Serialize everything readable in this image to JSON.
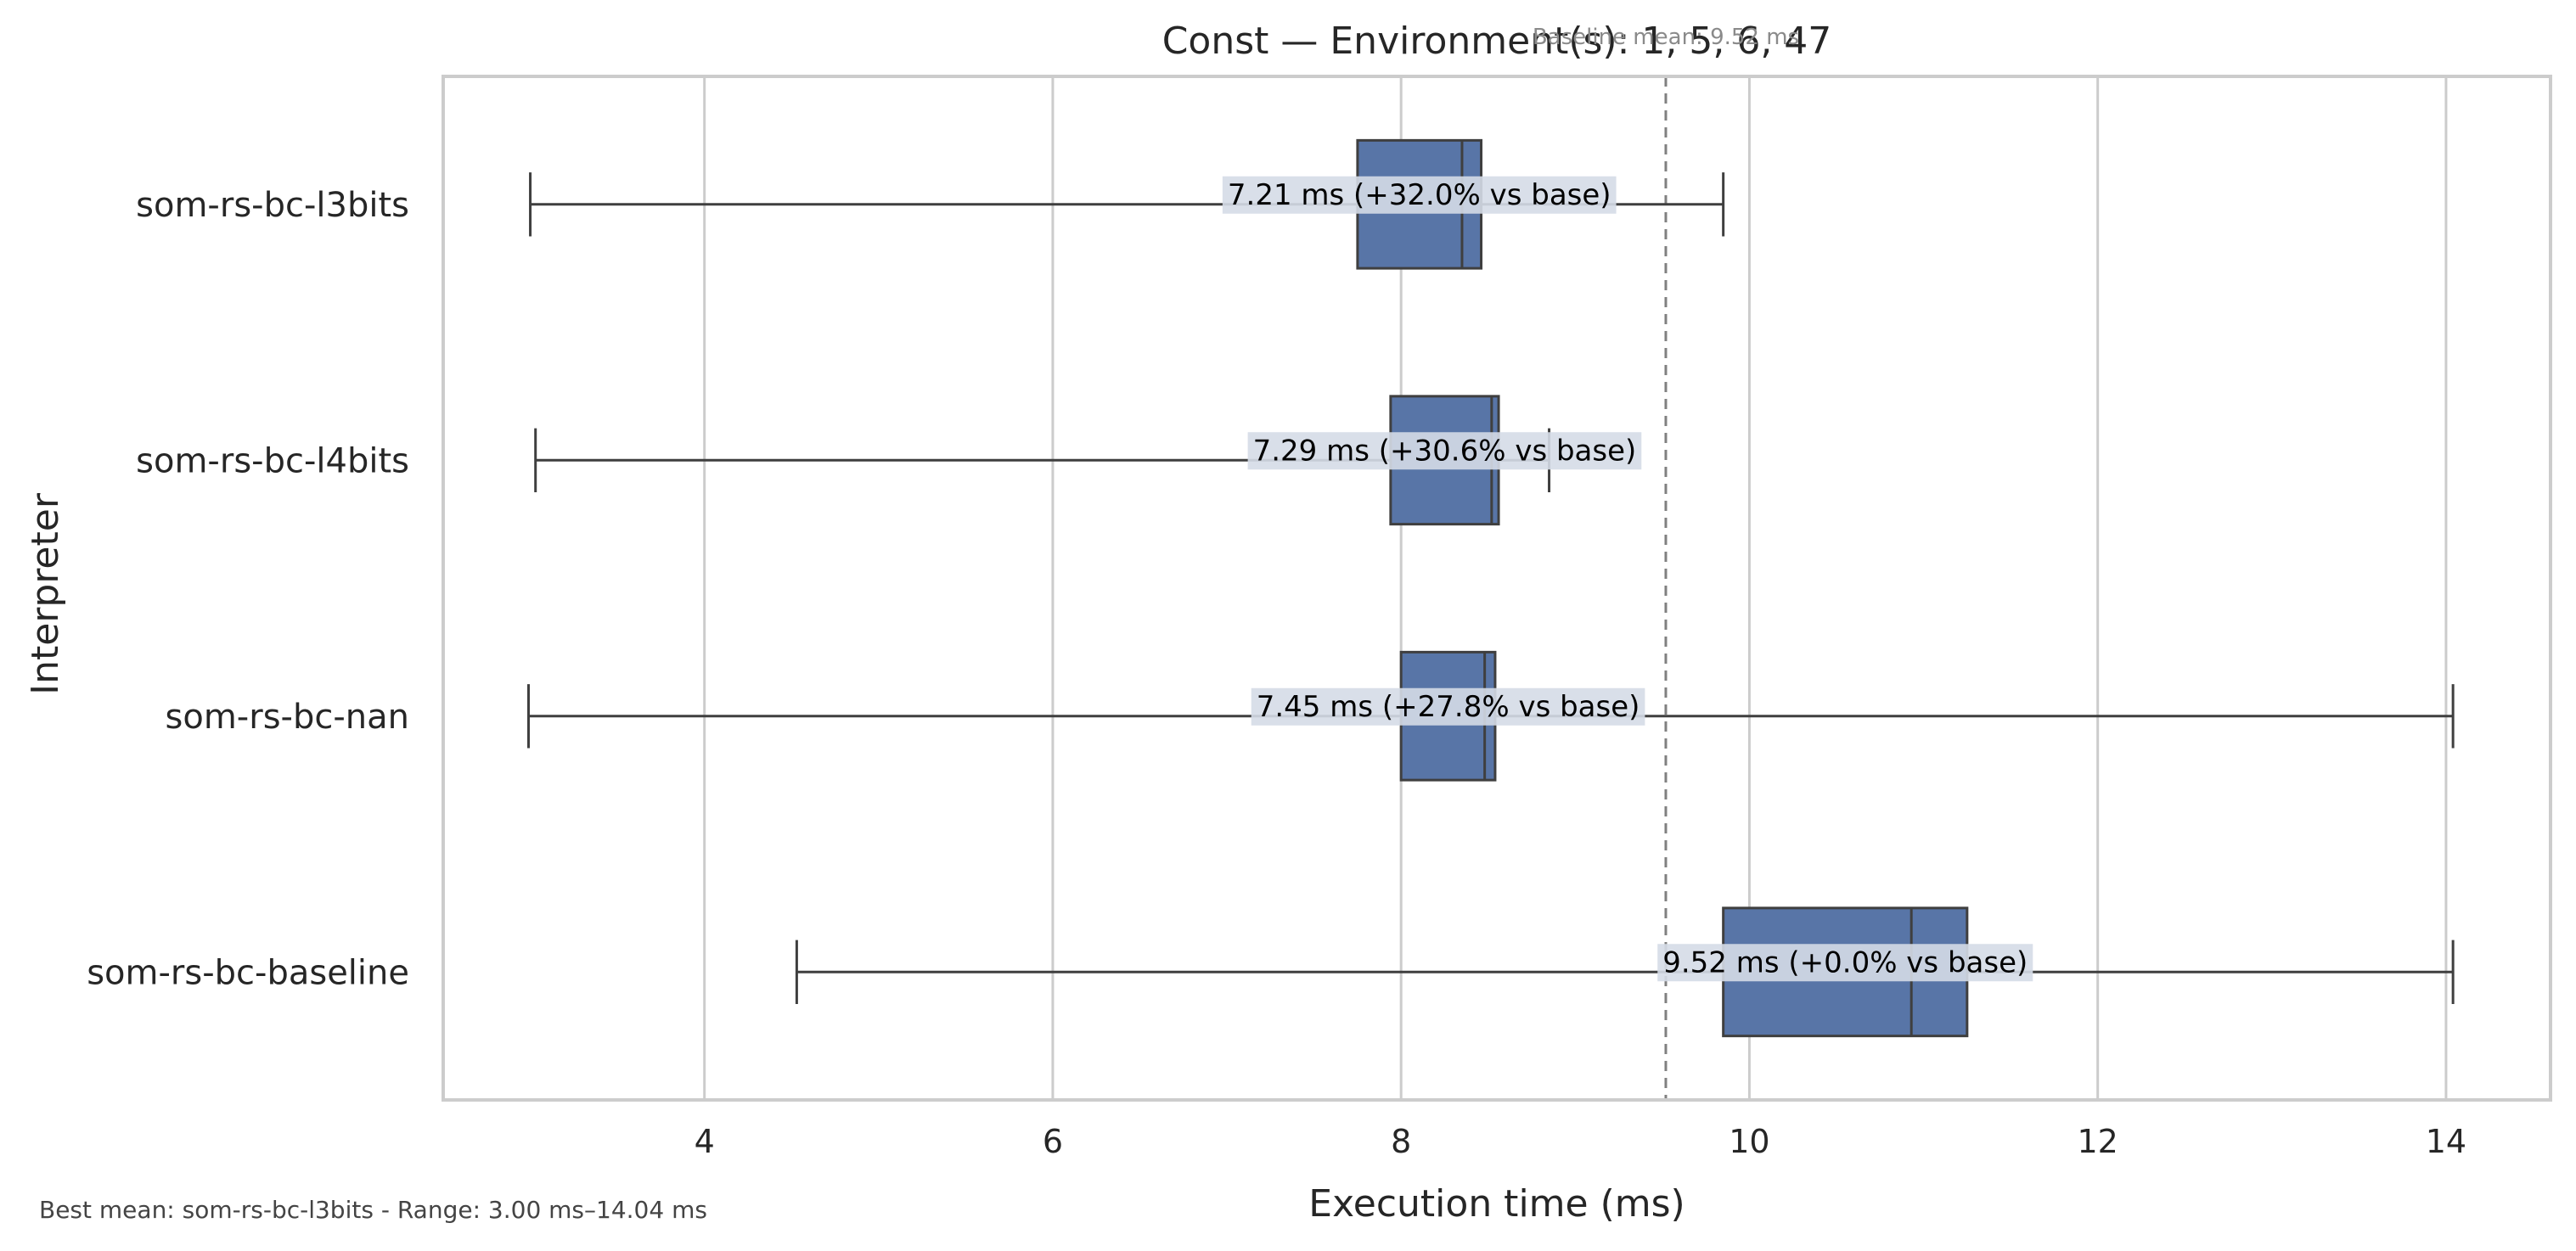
{
  "chart_data": {
    "type": "box",
    "orientation": "horizontal",
    "title": "Const — Environment(s): 1, 5, 6, 47",
    "xlabel": "Execution time (ms)",
    "ylabel": "Interpreter",
    "xlim": [
      2.5,
      14.6
    ],
    "xticks": [
      4,
      6,
      8,
      10,
      12,
      14
    ],
    "grid": "vertical",
    "colors": {
      "box_fill": "#5875a7",
      "box_edge": "#3f3f3f",
      "grid": "#cccccc",
      "frame": "#cccccc",
      "baseline_line": "#808080",
      "label_bg": "#d5dbe7"
    },
    "baseline": {
      "value": 9.52,
      "note": "Baseline mean: 9.52 ms"
    },
    "categories": [
      "som-rs-bc-l3bits",
      "som-rs-bc-l4bits",
      "som-rs-bc-nan",
      "som-rs-bc-baseline"
    ],
    "boxes": [
      {
        "name": "som-rs-bc-l3bits",
        "whisker_low": 3.0,
        "q1": 7.75,
        "median": 8.35,
        "q3": 8.46,
        "whisker_high": 9.85,
        "label": "7.21 ms  (+32.0% vs base)"
      },
      {
        "name": "som-rs-bc-l4bits",
        "whisker_low": 3.03,
        "q1": 7.94,
        "median": 8.52,
        "q3": 8.56,
        "whisker_high": 8.85,
        "label": "7.29 ms  (+30.6% vs base)"
      },
      {
        "name": "som-rs-bc-nan",
        "whisker_low": 2.99,
        "q1": 8.0,
        "median": 8.48,
        "q3": 8.54,
        "whisker_high": 14.04,
        "label": "7.45 ms  (+27.8% vs base)"
      },
      {
        "name": "som-rs-bc-baseline",
        "whisker_low": 4.53,
        "q1": 9.85,
        "median": 10.93,
        "q3": 11.25,
        "whisker_high": 14.04,
        "label": "9.52 ms  (+0.0% vs base)"
      }
    ]
  },
  "footer": {
    "note": "Best mean: som-rs-bc-l3bits - Range: 3.00 ms–14.04 ms"
  }
}
